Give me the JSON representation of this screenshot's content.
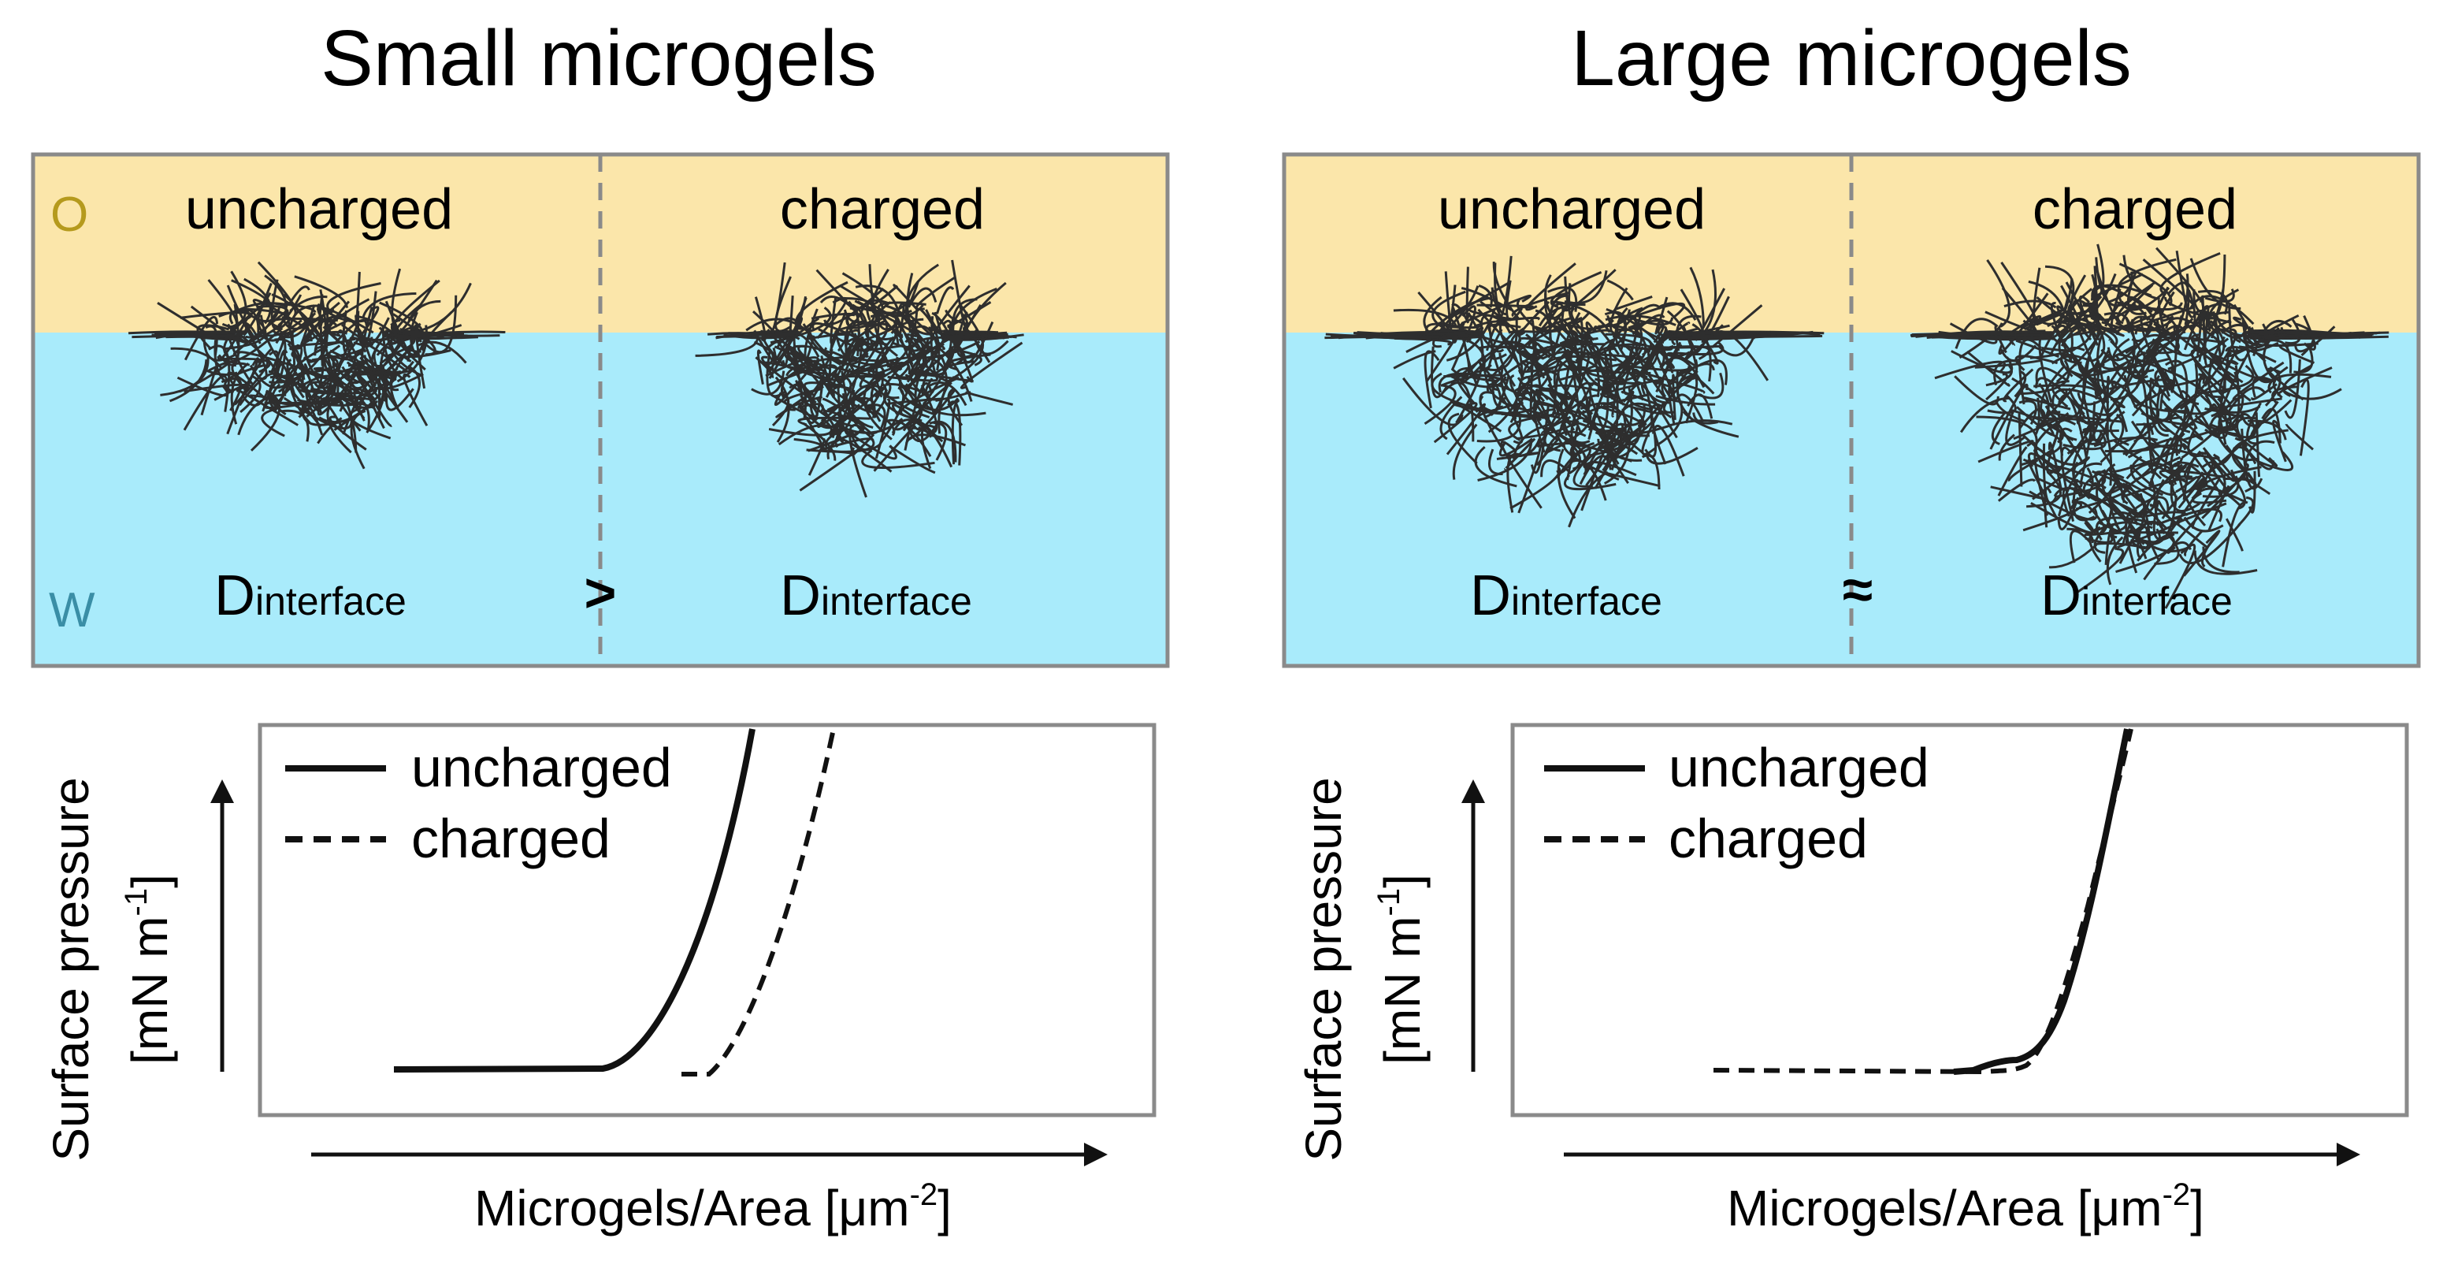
{
  "colors": {
    "oil": "#fbe6aa",
    "water": "#a9ebfb",
    "frame": "#8a8a8a",
    "oil_label": "#b59a1d",
    "water_label": "#3a8ea6",
    "network": "#2e2e2e"
  },
  "left": {
    "title": "Small microgels",
    "oil_label": "O",
    "water_label": "W",
    "uncharged_label": "uncharged",
    "charged_label": "charged",
    "d_main_1": "D",
    "d_sub_1": "interface",
    "relation": ">",
    "d_main_2": "D",
    "d_sub_2": "interface",
    "legend": {
      "solid": "uncharged",
      "dashed": "charged"
    },
    "y_label_1": "Surface pressure",
    "y_label_2": "[mN m",
    "y_label_sup": "-1",
    "y_label_end": "]",
    "x_label": "Microgels/Area [μm",
    "x_label_sup": "-2",
    "x_label_end": "]"
  },
  "right": {
    "title": "Large microgels",
    "uncharged_label": "uncharged",
    "charged_label": "charged",
    "d_main_1": "D",
    "d_sub_1": "interface",
    "relation": "≈",
    "d_main_2": "D",
    "d_sub_2": "interface",
    "legend": {
      "solid": "uncharged",
      "dashed": "charged"
    },
    "y_label_1": "Surface pressure",
    "y_label_2": "[mN m",
    "y_label_sup": "-1",
    "y_label_end": "]",
    "x_label": "Microgels/Area [μm",
    "x_label_sup": "-2",
    "x_label_end": "]"
  }
}
